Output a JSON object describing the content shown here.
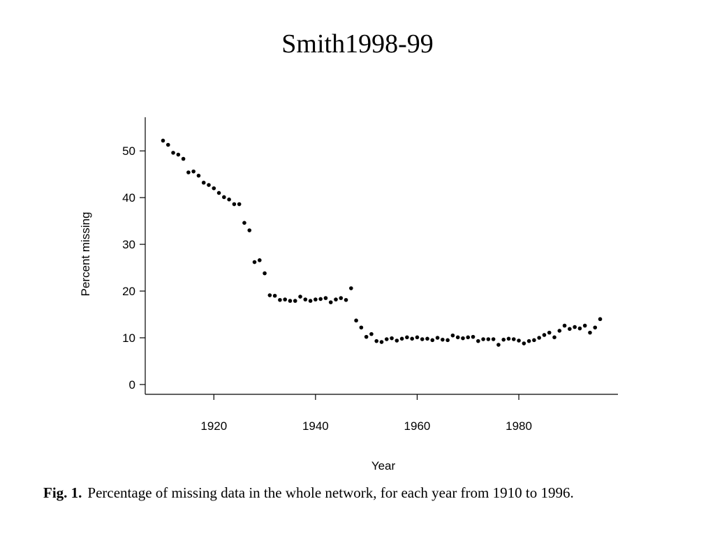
{
  "slide_title": "Smith1998-99",
  "caption_label": "Fig. 1.",
  "caption": "Percentage of missing data in the whole network, for each year from 1910 to 1996.",
  "chart_data": {
    "type": "scatter",
    "x_label": "Year",
    "y_label": "Percent missing",
    "color": "#000000",
    "x": [
      1910,
      1911,
      1912,
      1913,
      1914,
      1915,
      1916,
      1917,
      1918,
      1919,
      1920,
      1921,
      1922,
      1923,
      1924,
      1925,
      1926,
      1927,
      1928,
      1929,
      1930,
      1931,
      1932,
      1933,
      1934,
      1935,
      1936,
      1937,
      1938,
      1939,
      1940,
      1941,
      1942,
      1943,
      1944,
      1945,
      1946,
      1947,
      1948,
      1949,
      1950,
      1951,
      1952,
      1953,
      1954,
      1955,
      1956,
      1957,
      1958,
      1959,
      1960,
      1961,
      1962,
      1963,
      1964,
      1965,
      1966,
      1967,
      1968,
      1969,
      1970,
      1971,
      1972,
      1973,
      1974,
      1975,
      1976,
      1977,
      1978,
      1979,
      1980,
      1981,
      1982,
      1983,
      1984,
      1985,
      1986,
      1987,
      1988,
      1989,
      1990,
      1991,
      1992,
      1993,
      1994,
      1995,
      1996
    ],
    "values": [
      52.2,
      51.3,
      49.6,
      49.2,
      48.3,
      45.4,
      45.6,
      44.7,
      43.2,
      42.7,
      42.0,
      41.0,
      40.1,
      39.6,
      38.6,
      38.6,
      34.6,
      33.0,
      26.2,
      26.6,
      23.8,
      19.1,
      19.0,
      18.1,
      18.2,
      17.9,
      17.9,
      18.8,
      18.2,
      17.9,
      18.2,
      18.3,
      18.5,
      17.6,
      18.2,
      18.5,
      18.1,
      20.6,
      13.7,
      12.2,
      10.2,
      10.8,
      9.3,
      9.1,
      9.7,
      9.9,
      9.4,
      9.8,
      10.1,
      9.8,
      10.1,
      9.7,
      9.8,
      9.5,
      10.0,
      9.6,
      9.5,
      10.5,
      10.1,
      9.9,
      10.1,
      10.2,
      9.3,
      9.7,
      9.7,
      9.7,
      8.5,
      9.6,
      9.8,
      9.7,
      9.4,
      8.8,
      9.3,
      9.5,
      10.0,
      10.6,
      11.1,
      10.1,
      11.5,
      12.6,
      11.9,
      12.3,
      12.0,
      12.6,
      11.1,
      12.2,
      14.0
    ],
    "xlim": [
      1906.5,
      1999.5
    ],
    "xticks": [
      1920,
      1940,
      1960,
      1980
    ],
    "ylim": [
      -2.1,
      57.2
    ],
    "yticks": [
      0,
      10,
      20,
      30,
      40,
      50
    ]
  }
}
